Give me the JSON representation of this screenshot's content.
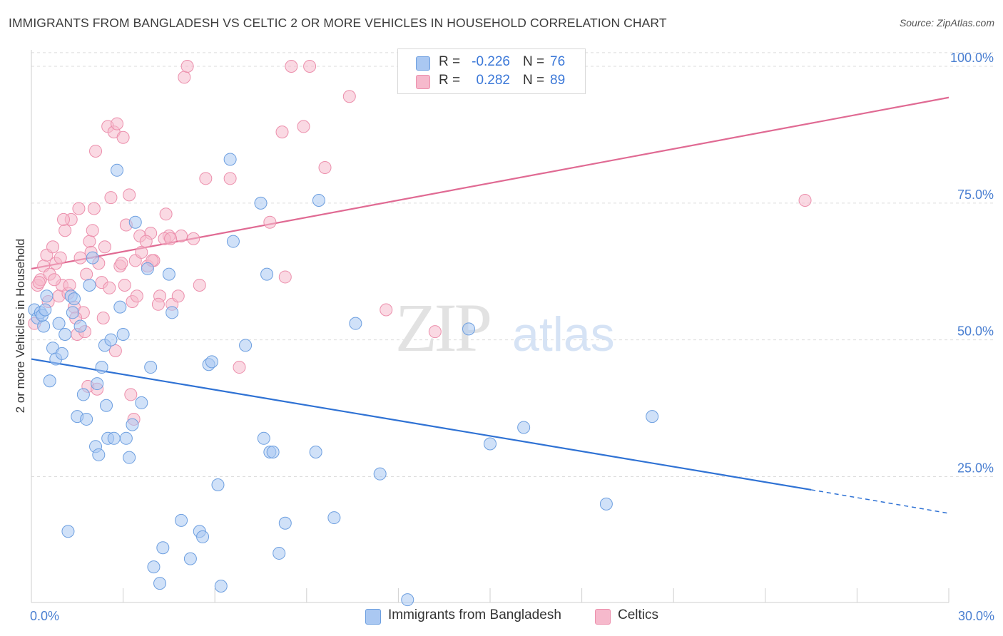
{
  "title": "IMMIGRANTS FROM BANGLADESH VS CELTIC 2 OR MORE VEHICLES IN HOUSEHOLD CORRELATION CHART",
  "source": "Source: ZipAtlas.com",
  "watermark": {
    "zip": "ZIP",
    "atlas": "atlas"
  },
  "legend": {
    "rows": [
      {
        "r_label": "R =",
        "r_value": "-0.226",
        "n_label": "N =",
        "n_value": "76",
        "color": "#aac8f2"
      },
      {
        "r_label": "R =",
        "r_value": "0.282",
        "n_label": "N =",
        "n_value": "89",
        "color": "#f6b9cc"
      }
    ]
  },
  "bottom_legend": {
    "item1": "Immigrants from Bangladesh",
    "item2": "Celtics"
  },
  "colors": {
    "blue_fill": "#aac8f2",
    "blue_stroke": "#6d9fe0",
    "blue_line": "#2f72d4",
    "pink_fill": "#f6b9cc",
    "pink_stroke": "#ec8fac",
    "pink_line": "#e06a93",
    "tick_label": "#4a7fd1",
    "grid": "#dcdcdc"
  },
  "chart_data": {
    "type": "scatter",
    "title": "IMMIGRANTS FROM BANGLADESH VS CELTIC 2 OR MORE VEHICLES IN HOUSEHOLD CORRELATION CHART",
    "xlabel": "",
    "ylabel": "2 or more Vehicles in Household",
    "xlim": [
      0,
      30
    ],
    "ylim": [
      2,
      103
    ],
    "x_tick_labels": [
      "0.0%",
      "30.0%"
    ],
    "y_ticks": [
      25,
      50,
      75,
      100
    ],
    "y_tick_labels": [
      "25.0%",
      "50.0%",
      "75.0%",
      "100.0%"
    ],
    "grid": true,
    "legend_position": "top-center",
    "series": [
      {
        "name": "Immigrants from Bangladesh",
        "color": "#aac8f2",
        "trend": {
          "x": [
            0,
            25.5
          ],
          "y": [
            46.5,
            22.6
          ],
          "dashed_to": [
            30,
            18.3
          ]
        },
        "points": [
          [
            0.1,
            55.5
          ],
          [
            0.2,
            54
          ],
          [
            0.3,
            55
          ],
          [
            0.4,
            52.5
          ],
          [
            0.5,
            58
          ],
          [
            0.6,
            42.5
          ],
          [
            0.7,
            48.5
          ],
          [
            0.8,
            46.5
          ],
          [
            0.9,
            53
          ],
          [
            1.0,
            47.5
          ],
          [
            1.1,
            51
          ],
          [
            1.2,
            15
          ],
          [
            1.3,
            58
          ],
          [
            1.4,
            57.5
          ],
          [
            1.5,
            36
          ],
          [
            1.6,
            52.5
          ],
          [
            1.7,
            40
          ],
          [
            1.8,
            35.5
          ],
          [
            1.9,
            60
          ],
          [
            2.0,
            65
          ],
          [
            2.1,
            30.5
          ],
          [
            2.2,
            29
          ],
          [
            2.3,
            45
          ],
          [
            2.4,
            49
          ],
          [
            2.5,
            32
          ],
          [
            2.6,
            50
          ],
          [
            2.7,
            32
          ],
          [
            2.8,
            81
          ],
          [
            2.9,
            56
          ],
          [
            3.0,
            51
          ],
          [
            3.1,
            32
          ],
          [
            3.2,
            28.5
          ],
          [
            3.3,
            34.5
          ],
          [
            3.4,
            71.5
          ],
          [
            3.6,
            38.5
          ],
          [
            3.8,
            63
          ],
          [
            3.9,
            45
          ],
          [
            4.0,
            8.5
          ],
          [
            4.2,
            5.5
          ],
          [
            4.3,
            12
          ],
          [
            4.5,
            62
          ],
          [
            4.6,
            55
          ],
          [
            4.9,
            17
          ],
          [
            5.2,
            10
          ],
          [
            5.5,
            15
          ],
          [
            5.6,
            14
          ],
          [
            5.8,
            45.5
          ],
          [
            5.9,
            46
          ],
          [
            6.1,
            23.5
          ],
          [
            6.2,
            5
          ],
          [
            6.5,
            83
          ],
          [
            6.6,
            68
          ],
          [
            7.0,
            49
          ],
          [
            7.5,
            75
          ],
          [
            7.6,
            32
          ],
          [
            7.7,
            62
          ],
          [
            7.8,
            29.5
          ],
          [
            7.9,
            29.5
          ],
          [
            8.1,
            11
          ],
          [
            8.3,
            16.5
          ],
          [
            9.3,
            29.5
          ],
          [
            9.4,
            75.5
          ],
          [
            9.9,
            17.5
          ],
          [
            10.6,
            53
          ],
          [
            11.4,
            25.5
          ],
          [
            12.3,
            2.5
          ],
          [
            14.3,
            52
          ],
          [
            15.0,
            31
          ],
          [
            16.1,
            34
          ],
          [
            18.8,
            20
          ],
          [
            20.3,
            36
          ],
          [
            0.35,
            54.5
          ],
          [
            0.45,
            55.5
          ],
          [
            1.35,
            55
          ],
          [
            2.15,
            42
          ],
          [
            2.45,
            38
          ]
        ]
      },
      {
        "name": "Celtics",
        "color": "#f6b9cc",
        "trend": {
          "x": [
            0,
            30
          ],
          "y": [
            63,
            94.3
          ]
        },
        "points": [
          [
            0.1,
            53
          ],
          [
            0.2,
            60
          ],
          [
            0.3,
            61
          ],
          [
            0.4,
            63.5
          ],
          [
            0.5,
            65.5
          ],
          [
            0.6,
            62
          ],
          [
            0.7,
            67
          ],
          [
            0.8,
            64
          ],
          [
            0.9,
            58
          ],
          [
            1.0,
            60
          ],
          [
            1.1,
            70
          ],
          [
            1.2,
            58.5
          ],
          [
            1.3,
            72
          ],
          [
            1.4,
            56
          ],
          [
            1.5,
            51
          ],
          [
            1.6,
            65
          ],
          [
            1.7,
            55
          ],
          [
            1.8,
            62
          ],
          [
            1.9,
            68
          ],
          [
            2.0,
            70
          ],
          [
            2.1,
            84.5
          ],
          [
            2.2,
            64
          ],
          [
            2.3,
            60.5
          ],
          [
            2.4,
            67
          ],
          [
            2.5,
            89
          ],
          [
            2.6,
            76
          ],
          [
            2.7,
            88
          ],
          [
            2.8,
            89.5
          ],
          [
            2.9,
            63.5
          ],
          [
            3.0,
            87
          ],
          [
            3.1,
            71
          ],
          [
            3.2,
            76.5
          ],
          [
            3.3,
            57
          ],
          [
            3.4,
            64.5
          ],
          [
            3.6,
            66
          ],
          [
            3.8,
            63.5
          ],
          [
            3.9,
            69.5
          ],
          [
            4.0,
            64.5
          ],
          [
            4.2,
            58
          ],
          [
            4.4,
            73
          ],
          [
            4.5,
            69
          ],
          [
            4.6,
            56.5
          ],
          [
            4.8,
            58
          ],
          [
            4.9,
            69
          ],
          [
            5.0,
            98
          ],
          [
            5.1,
            100
          ],
          [
            5.3,
            68.5
          ],
          [
            5.5,
            60
          ],
          [
            5.7,
            79.5
          ],
          [
            6.5,
            79.5
          ],
          [
            6.8,
            45
          ],
          [
            7.8,
            71.5
          ],
          [
            8.2,
            88
          ],
          [
            8.3,
            61.5
          ],
          [
            8.5,
            100
          ],
          [
            8.9,
            89
          ],
          [
            9.1,
            100
          ],
          [
            9.6,
            81.5
          ],
          [
            10.4,
            94.5
          ],
          [
            11.6,
            55.5
          ],
          [
            13.2,
            51.5
          ],
          [
            25.3,
            75.5
          ],
          [
            0.25,
            60.5
          ],
          [
            0.55,
            57
          ],
          [
            0.75,
            61
          ],
          [
            0.95,
            65
          ],
          [
            1.05,
            72
          ],
          [
            1.25,
            60
          ],
          [
            1.45,
            54
          ],
          [
            1.55,
            74
          ],
          [
            1.75,
            51.5
          ],
          [
            1.85,
            41.5
          ],
          [
            1.95,
            66
          ],
          [
            2.05,
            74
          ],
          [
            2.15,
            41
          ],
          [
            2.35,
            54
          ],
          [
            2.55,
            59.5
          ],
          [
            2.75,
            48
          ],
          [
            2.95,
            64
          ],
          [
            3.05,
            60
          ],
          [
            3.25,
            40
          ],
          [
            3.35,
            35.5
          ],
          [
            3.45,
            58
          ],
          [
            3.55,
            69
          ],
          [
            3.75,
            68
          ],
          [
            3.95,
            64.5
          ],
          [
            4.15,
            56.5
          ],
          [
            4.35,
            68.5
          ],
          [
            4.55,
            68.5
          ]
        ]
      }
    ]
  }
}
